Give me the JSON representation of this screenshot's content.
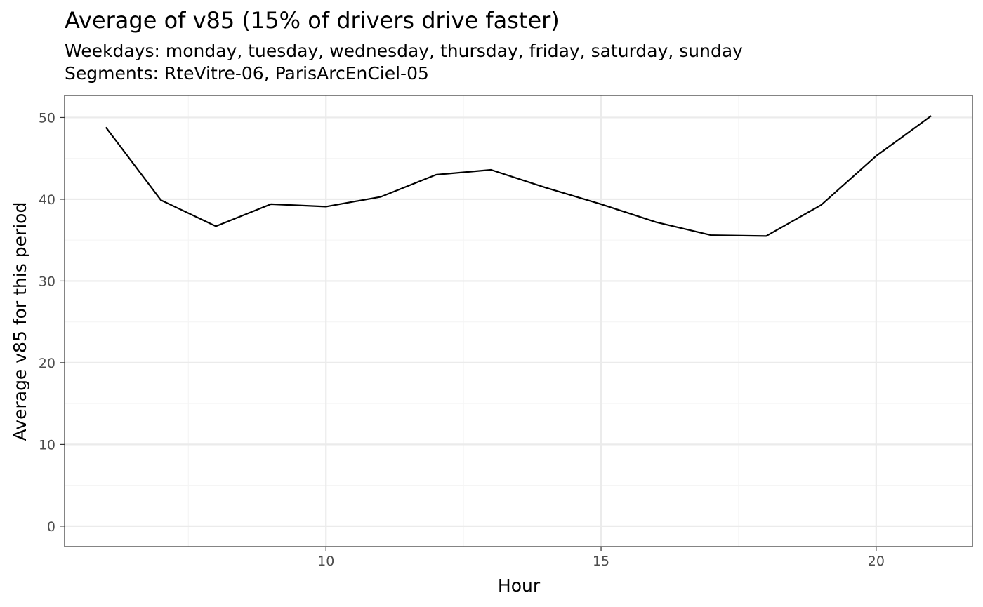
{
  "chart_data": {
    "type": "line",
    "title": "Average of v85 (15% of drivers drive faster)",
    "subtitle_lines": [
      "Weekdays: monday, tuesday, wednesday, thursday, friday, saturday, sunday",
      "Segments: RteVitre-06, ParisArcEnCiel-05"
    ],
    "xlabel": "Hour",
    "ylabel": "Average v85 for this period",
    "xlim": [
      5.25,
      21.75
    ],
    "ylim": [
      -2.5,
      52.7
    ],
    "x_ticks": [
      "10",
      "15",
      "20"
    ],
    "y_ticks": [
      "0",
      "10",
      "20",
      "30",
      "40",
      "50"
    ],
    "grid": true,
    "x": [
      6,
      7,
      8,
      9,
      10,
      11,
      12,
      13,
      14,
      15,
      16,
      17,
      18,
      19,
      20,
      21
    ],
    "values": [
      48.8,
      39.9,
      36.7,
      39.4,
      39.1,
      40.3,
      43.0,
      43.6,
      41.4,
      39.4,
      37.2,
      35.6,
      35.5,
      39.3,
      45.3,
      50.2
    ],
    "colors": {
      "line": "#000000",
      "grid_major": "#ebebeb",
      "grid_minor": "#f5f5f5",
      "panel_border": "#333333",
      "tick_text": "#4d4d4d"
    }
  }
}
